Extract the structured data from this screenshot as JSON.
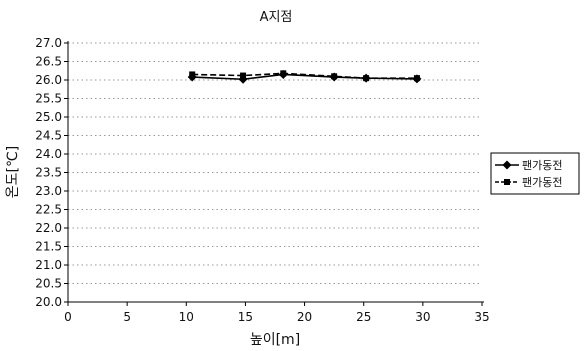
{
  "chart_data": {
    "type": "line",
    "title": "A지점",
    "xlabel": "높이[m]",
    "ylabel": "온도[℃]",
    "xlim": [
      0,
      35
    ],
    "ylim": [
      20.0,
      27.0
    ],
    "xticks": [
      0,
      5,
      10,
      15,
      20,
      25,
      30,
      35
    ],
    "xtick_labels": [
      "0",
      "5",
      "10",
      "15",
      "20",
      "25",
      "30",
      "35"
    ],
    "yticks": [
      20.0,
      20.5,
      21.0,
      21.5,
      22.0,
      22.5,
      23.0,
      23.5,
      24.0,
      24.5,
      25.0,
      25.5,
      26.0,
      26.5,
      27.0
    ],
    "ytick_labels": [
      "20.0",
      "20.5",
      "21.0",
      "21.5",
      "22.0",
      "22.5",
      "23.0",
      "23.5",
      "24.0",
      "24.5",
      "25.0",
      "25.5",
      "26.0",
      "26.5",
      "27.0"
    ],
    "grid": "horizontal-dotted",
    "legend_position": "right",
    "series": [
      {
        "name": "팬가동전",
        "marker": "diamond",
        "line_style": "solid",
        "color": "#000000",
        "x": [
          10.5,
          14.8,
          18.2,
          22.5,
          25.2,
          29.5
        ],
        "y": [
          26.08,
          26.02,
          26.15,
          26.08,
          26.05,
          26.03
        ]
      },
      {
        "name": "팬가동전",
        "marker": "square",
        "line_style": "dashed",
        "color": "#000000",
        "x": [
          10.5,
          14.8,
          18.2,
          22.5,
          25.2,
          29.5
        ],
        "y": [
          26.15,
          26.12,
          26.18,
          26.1,
          26.05,
          26.05
        ]
      }
    ]
  }
}
